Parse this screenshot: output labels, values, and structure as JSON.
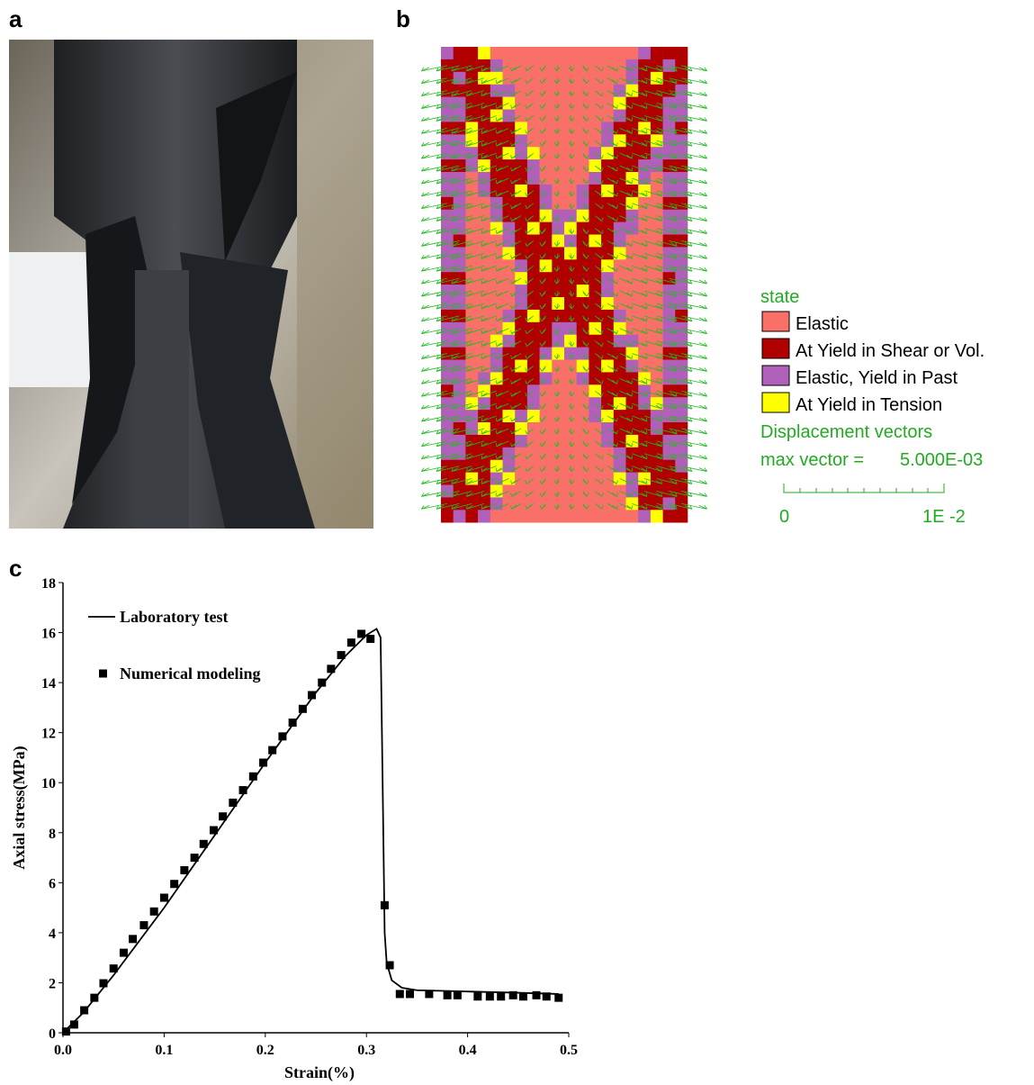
{
  "panel_labels": [
    "a",
    "b",
    "c"
  ],
  "state_legend": {
    "title": "state",
    "items": [
      "Elastic",
      "At Yield in Shear or Vol.",
      "Elastic, Yield in Past",
      "At Yield in Tension"
    ]
  },
  "vectors": {
    "title": "Displacement vectors",
    "max_label": "max vector =",
    "max_value": "5.000E-03",
    "scale_min": "0",
    "scale_max": "1E -2"
  },
  "chart_data": {
    "type": "line",
    "xlabel": "Strain(%)",
    "ylabel": "Axial stress(MPa)",
    "xlim": [
      0,
      0.5
    ],
    "ylim": [
      0,
      18
    ],
    "xticks": [
      {
        "value": 0,
        "label": "0.0"
      },
      0.1,
      0.2,
      0.3,
      0.4,
      0.5
    ],
    "yticks": [
      0,
      2,
      4,
      6,
      8,
      10,
      12,
      14,
      16,
      18
    ],
    "series": [
      {
        "name": "Laboratory test",
        "type": "line",
        "color": "#000000",
        "x": [
          0,
          0.02,
          0.05,
          0.1,
          0.15,
          0.2,
          0.25,
          0.28,
          0.3,
          0.31,
          0.314,
          0.316,
          0.318,
          0.32,
          0.325,
          0.335,
          0.35,
          0.4,
          0.45,
          0.49
        ],
        "values": [
          0,
          0.8,
          2.3,
          5,
          7.9,
          10.8,
          13.6,
          15.1,
          15.9,
          16.15,
          15.8,
          10,
          4,
          2.8,
          2.1,
          1.8,
          1.7,
          1.65,
          1.6,
          1.55
        ]
      },
      {
        "name": "Numerical modeling",
        "type": "scatter",
        "color": "#000000",
        "x": [
          0.003,
          0.011,
          0.021,
          0.031,
          0.04,
          0.05,
          0.06,
          0.069,
          0.08,
          0.09,
          0.1,
          0.11,
          0.12,
          0.13,
          0.139,
          0.149,
          0.158,
          0.168,
          0.178,
          0.188,
          0.198,
          0.207,
          0.217,
          0.227,
          0.237,
          0.246,
          0.256,
          0.265,
          0.275,
          0.285,
          0.295,
          0.304,
          0.318,
          0.323,
          0.333,
          0.343,
          0.362,
          0.38,
          0.39,
          0.41,
          0.422,
          0.433,
          0.445,
          0.455,
          0.468,
          0.478,
          0.49
        ],
        "values": [
          0.05,
          0.33,
          0.9,
          1.4,
          1.98,
          2.57,
          3.2,
          3.75,
          4.3,
          4.85,
          5.4,
          5.95,
          6.5,
          7.0,
          7.55,
          8.1,
          8.65,
          9.2,
          9.7,
          10.25,
          10.8,
          11.3,
          11.85,
          12.4,
          12.95,
          13.5,
          14.0,
          14.55,
          15.1,
          15.6,
          15.95,
          15.75,
          5.1,
          2.7,
          1.55,
          1.55,
          1.55,
          1.5,
          1.5,
          1.45,
          1.45,
          1.45,
          1.5,
          1.45,
          1.5,
          1.45,
          1.4
        ]
      }
    ]
  }
}
